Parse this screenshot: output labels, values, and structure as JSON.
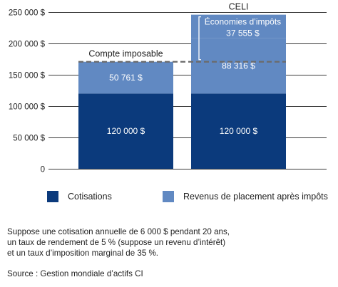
{
  "chart_data": {
    "type": "bar",
    "stacked": true,
    "categories": [
      "Compte imposable",
      "CELI"
    ],
    "series": [
      {
        "name": "Cotisations",
        "values": [
          120000,
          120000
        ],
        "labels": [
          "120 000 $",
          "120 000 $"
        ],
        "color": "#0b3a7c"
      },
      {
        "name": "Revenus de placement après impôts",
        "values": [
          50761,
          88316
        ],
        "labels": [
          "50 761 $",
          "88 316 $"
        ],
        "color": "#6189c2"
      }
    ],
    "extra_segment": {
      "category": "CELI",
      "label_line1": "Économies d’impôts",
      "label_line2": "37 555 $",
      "value": 37555,
      "color": "#6189c2"
    },
    "reference_line": {
      "value": 170761,
      "style": "dashed",
      "color": "#6b6b6b"
    },
    "ylim": [
      0,
      250000
    ],
    "yticks": [
      0,
      50000,
      100000,
      150000,
      200000,
      250000
    ],
    "ytick_labels": [
      "0",
      "50 000 $",
      "100 000 $",
      "150 000 $",
      "200 000 $",
      "250 000 $"
    ],
    "grid": true,
    "legend_position": "bottom",
    "xlabel": "",
    "ylabel": ""
  },
  "note_lines": [
    "Suppose une cotisation annuelle de 6 000 $ pendant 20 ans,",
    "un taux de rendement de 5 % (suppose un revenu d’intérêt)",
    "et un taux d’imposition marginal de 35 %."
  ],
  "source": "Source : Gestion mondiale d’actifs CI",
  "colors": {
    "dark_blue": "#0b3a7c",
    "light_blue": "#6189c2",
    "grid": "#3a3a3a",
    "dashed": "#6b6b6b",
    "text": "#222222"
  }
}
